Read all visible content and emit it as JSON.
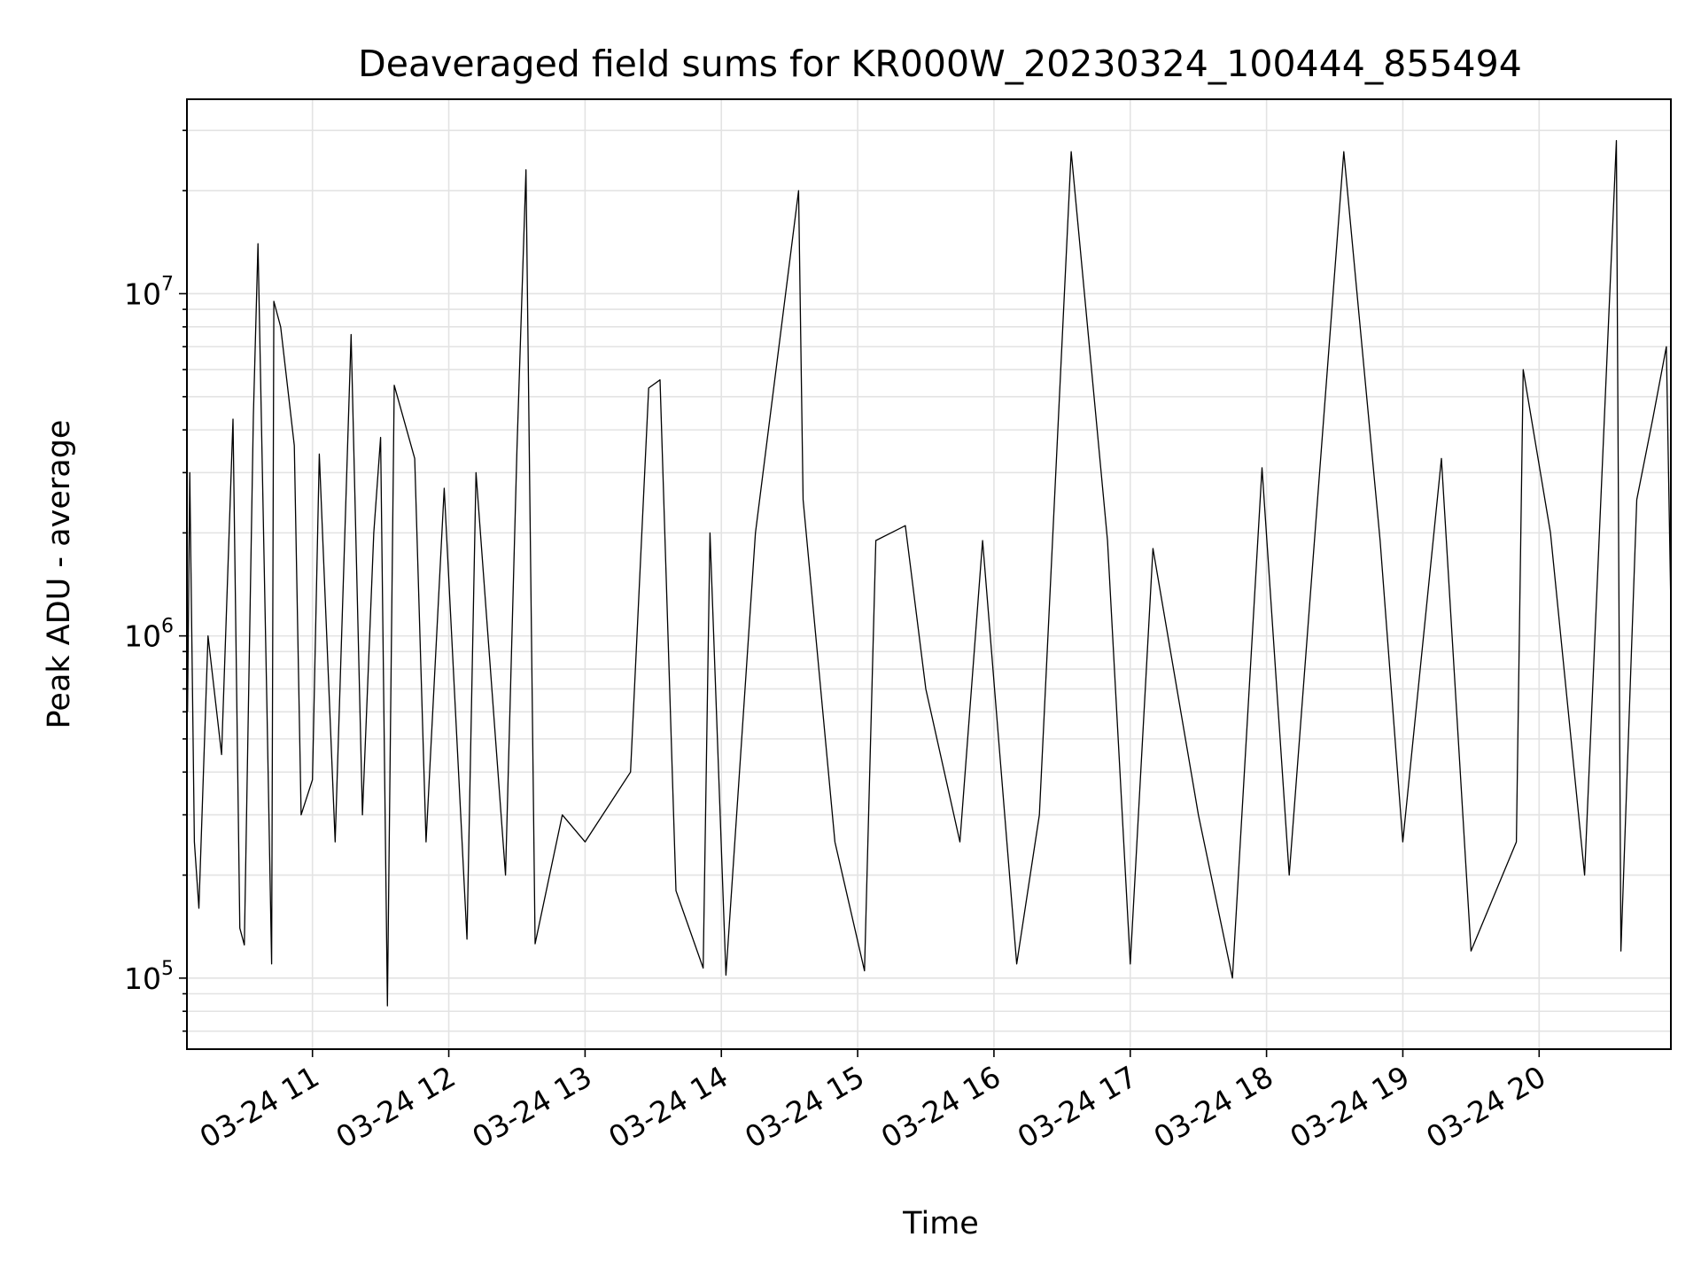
{
  "chart_data": {
    "type": "line",
    "title": "Deaveraged field sums for KR000W_20230324_100444_855494",
    "xlabel": "Time",
    "ylabel": "Peak ADU - average",
    "y_scale": "log",
    "ylim": [
      62000,
      37000000
    ],
    "xlim": [
      "2023-03-24 10:04:44",
      "2023-03-24 20:58:00"
    ],
    "x_ticks": [
      {
        "time": "2023-03-24 11:00",
        "label": "03-24 11"
      },
      {
        "time": "2023-03-24 12:00",
        "label": "03-24 12"
      },
      {
        "time": "2023-03-24 13:00",
        "label": "03-24 13"
      },
      {
        "time": "2023-03-24 14:00",
        "label": "03-24 14"
      },
      {
        "time": "2023-03-24 15:00",
        "label": "03-24 15"
      },
      {
        "time": "2023-03-24 16:00",
        "label": "03-24 16"
      },
      {
        "time": "2023-03-24 17:00",
        "label": "03-24 17"
      },
      {
        "time": "2023-03-24 18:00",
        "label": "03-24 18"
      },
      {
        "time": "2023-03-24 19:00",
        "label": "03-24 19"
      },
      {
        "time": "2023-03-24 20:00",
        "label": "03-24 20"
      }
    ],
    "y_ticks": [
      {
        "value": 100000,
        "base": "10",
        "exp": "5"
      },
      {
        "value": 1000000,
        "base": "10",
        "exp": "6"
      },
      {
        "value": 10000000,
        "base": "10",
        "exp": "7"
      }
    ],
    "grid": true,
    "line_color": "#000000",
    "series": [
      {
        "values": [
          [
            "2023-03-24 10:05",
            600000
          ],
          [
            "2023-03-24 10:06",
            3000000
          ],
          [
            "2023-03-24 10:08",
            250000
          ],
          [
            "2023-03-24 10:10",
            160000
          ],
          [
            "2023-03-24 10:14",
            1000000
          ],
          [
            "2023-03-24 10:20",
            450000
          ],
          [
            "2023-03-24 10:25",
            4300000
          ],
          [
            "2023-03-24 10:28",
            140000
          ],
          [
            "2023-03-24 10:30",
            125000
          ],
          [
            "2023-03-24 10:34",
            4400000
          ],
          [
            "2023-03-24 10:36",
            14000000
          ],
          [
            "2023-03-24 10:40",
            600000
          ],
          [
            "2023-03-24 10:42",
            110000
          ],
          [
            "2023-03-24 10:43",
            9500000
          ],
          [
            "2023-03-24 10:46",
            8000000
          ],
          [
            "2023-03-24 10:52",
            3600000
          ],
          [
            "2023-03-24 10:55",
            300000
          ],
          [
            "2023-03-24 11:00",
            380000
          ],
          [
            "2023-03-24 11:03",
            3400000
          ],
          [
            "2023-03-24 11:10",
            250000
          ],
          [
            "2023-03-24 11:17",
            7600000
          ],
          [
            "2023-03-24 11:22",
            300000
          ],
          [
            "2023-03-24 11:27",
            2000000
          ],
          [
            "2023-03-24 11:30",
            3800000
          ],
          [
            "2023-03-24 11:33",
            83000
          ],
          [
            "2023-03-24 11:36",
            5400000
          ],
          [
            "2023-03-24 11:45",
            3300000
          ],
          [
            "2023-03-24 11:50",
            250000
          ],
          [
            "2023-03-24 11:58",
            2700000
          ],
          [
            "2023-03-24 12:08",
            130000
          ],
          [
            "2023-03-24 12:12",
            3000000
          ],
          [
            "2023-03-24 12:25",
            200000
          ],
          [
            "2023-03-24 12:30",
            3500000
          ],
          [
            "2023-03-24 12:34",
            23000000
          ],
          [
            "2023-03-24 12:38",
            126000
          ],
          [
            "2023-03-24 12:50",
            300000
          ],
          [
            "2023-03-24 13:00",
            250000
          ],
          [
            "2023-03-24 13:20",
            400000
          ],
          [
            "2023-03-24 13:28",
            5300000
          ],
          [
            "2023-03-24 13:33",
            5600000
          ],
          [
            "2023-03-24 13:40",
            180000
          ],
          [
            "2023-03-24 13:52",
            107000
          ],
          [
            "2023-03-24 13:55",
            2000000
          ],
          [
            "2023-03-24 14:02",
            102000
          ],
          [
            "2023-03-24 14:15",
            2000000
          ],
          [
            "2023-03-24 14:34",
            20000000
          ],
          [
            "2023-03-24 14:36",
            2500000
          ],
          [
            "2023-03-24 14:50",
            250000
          ],
          [
            "2023-03-24 15:03",
            105000
          ],
          [
            "2023-03-24 15:08",
            1900000
          ],
          [
            "2023-03-24 15:21",
            2100000
          ],
          [
            "2023-03-24 15:30",
            700000
          ],
          [
            "2023-03-24 15:45",
            250000
          ],
          [
            "2023-03-24 15:55",
            1900000
          ],
          [
            "2023-03-24 16:10",
            110000
          ],
          [
            "2023-03-24 16:20",
            300000
          ],
          [
            "2023-03-24 16:34",
            26000000
          ],
          [
            "2023-03-24 16:50",
            1900000
          ],
          [
            "2023-03-24 17:00",
            110000
          ],
          [
            "2023-03-24 17:10",
            1800000
          ],
          [
            "2023-03-24 17:30",
            300000
          ],
          [
            "2023-03-24 17:45",
            100000
          ],
          [
            "2023-03-24 17:58",
            3100000
          ],
          [
            "2023-03-24 18:10",
            200000
          ],
          [
            "2023-03-24 18:34",
            26000000
          ],
          [
            "2023-03-24 18:50",
            1900000
          ],
          [
            "2023-03-24 19:00",
            250000
          ],
          [
            "2023-03-24 19:17",
            3300000
          ],
          [
            "2023-03-24 19:30",
            120000
          ],
          [
            "2023-03-24 19:50",
            250000
          ],
          [
            "2023-03-24 19:53",
            6000000
          ],
          [
            "2023-03-24 20:05",
            2000000
          ],
          [
            "2023-03-24 20:20",
            200000
          ],
          [
            "2023-03-24 20:34",
            28000000
          ],
          [
            "2023-03-24 20:36",
            120000
          ],
          [
            "2023-03-24 20:43",
            2500000
          ],
          [
            "2023-03-24 20:50",
            4300000
          ],
          [
            "2023-03-24 20:56",
            7000000
          ],
          [
            "2023-03-24 20:58",
            1200000
          ]
        ]
      }
    ]
  }
}
